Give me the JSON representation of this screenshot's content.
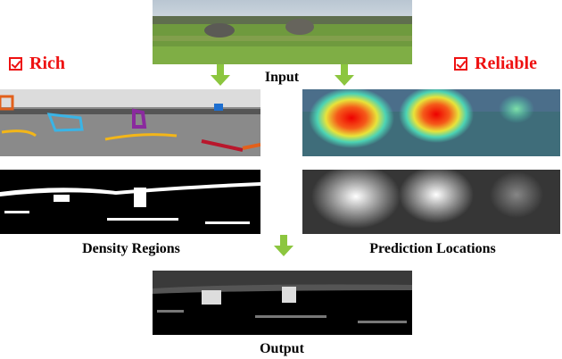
{
  "labels": {
    "input": "Input",
    "density_regions": "Density Regions",
    "prediction_locations": "Prediction Locations",
    "output": "Output"
  },
  "tags": {
    "rich": "Rich",
    "reliable": "Reliable",
    "icon": "checkbox-checked-icon"
  },
  "colors": {
    "tag_red": "#ee1111",
    "arrow_green": "#8cc63f"
  }
}
